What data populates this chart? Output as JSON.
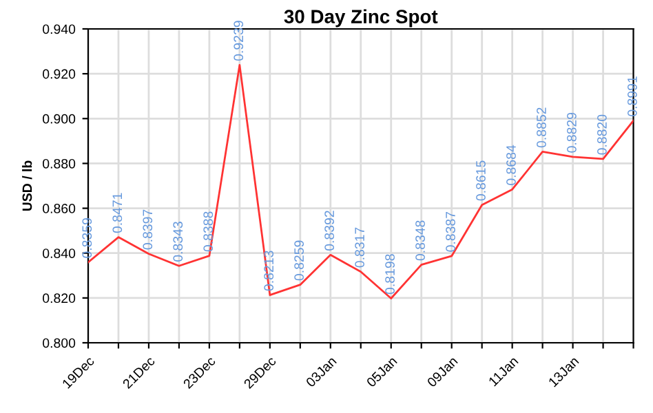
{
  "chart_data": {
    "type": "line",
    "title": "30 Day Zinc Spot",
    "ylabel": "USD / lb",
    "categories": [
      "19Dec",
      null,
      "21Dec",
      null,
      "23Dec",
      null,
      "29Dec",
      null,
      "03Jan",
      null,
      "05Jan",
      null,
      "09Jan",
      null,
      "11Jan",
      null,
      "13Jan",
      null,
      null
    ],
    "series": [
      {
        "color": "#ff3333",
        "values": [
          0.8359,
          0.8471,
          0.8397,
          0.8343,
          0.8388,
          0.9239,
          0.8213,
          0.8259,
          0.8392,
          0.8317,
          0.8198,
          0.8348,
          0.8387,
          0.8615,
          0.8684,
          0.8852,
          0.8829,
          0.882,
          0.8991
        ],
        "value_labels": [
          "0.8359",
          "0.8471",
          "0.8397",
          "0.8343",
          "0.8388",
          "0.9239",
          "0.8213",
          "0.8259",
          "0.8392",
          "0.8317",
          "0.8198",
          "0.8348",
          "0.8387",
          "0.8615",
          "0.8684",
          "0.8852",
          "0.8829",
          "0.8820",
          "0.8991"
        ]
      }
    ],
    "ylim": [
      0.8,
      0.94
    ],
    "yticks": [
      {
        "value": 0.8,
        "label": "0.800"
      },
      {
        "value": 0.82,
        "label": "0.820"
      },
      {
        "value": 0.84,
        "label": "0.840"
      },
      {
        "value": 0.86,
        "label": "0.860"
      },
      {
        "value": 0.88,
        "label": "0.880"
      },
      {
        "value": 0.9,
        "label": "0.900"
      },
      {
        "value": 0.92,
        "label": "0.920"
      },
      {
        "value": 0.94,
        "label": "0.940"
      }
    ],
    "grid": true,
    "marker": "none",
    "line_style": "solid"
  }
}
